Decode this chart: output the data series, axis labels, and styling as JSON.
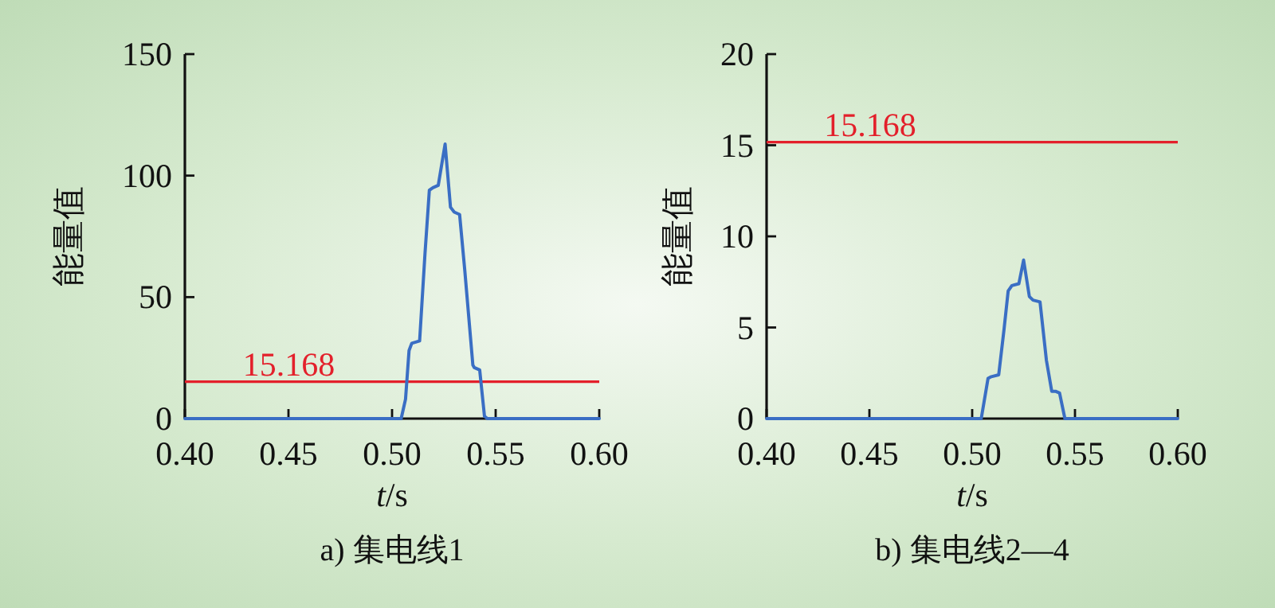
{
  "chart_data": [
    {
      "type": "line",
      "title": "a) 集电线1",
      "xlabel": "*t*/s",
      "ylabel": "能量值",
      "x": [
        0.4,
        0.5044,
        0.5065,
        0.5082,
        0.5095,
        0.5133,
        0.5159,
        0.518,
        0.5197,
        0.5223,
        0.5256,
        0.5282,
        0.53,
        0.5326,
        0.5351,
        0.539,
        0.5397,
        0.5423,
        0.5446,
        0.546,
        0.6
      ],
      "series": [
        {
          "color": "#3a6ec4",
          "values": [
            0,
            0,
            8,
            28,
            31,
            32,
            68,
            94,
            95,
            96,
            113,
            87,
            85,
            84,
            61,
            22,
            21,
            20,
            1,
            0,
            0
          ]
        }
      ],
      "xlim": [
        0.4,
        0.6
      ],
      "ylim": [
        0,
        150
      ],
      "xticks": [
        {
          "value": 0.4,
          "label": "0.40"
        },
        {
          "value": 0.45,
          "label": "0.45"
        },
        {
          "value": 0.5,
          "label": "0.50"
        },
        {
          "value": 0.55,
          "label": "0.55"
        },
        {
          "value": 0.6,
          "label": "0.60"
        }
      ],
      "yticks": [
        0,
        50,
        100,
        150
      ],
      "ref_lines": [
        {
          "axis": "y",
          "value": 15.168,
          "label": "15.168",
          "color": "#e3202b"
        }
      ]
    },
    {
      "type": "line",
      "title": "b) 集电线2—4",
      "xlabel": "*t*/s",
      "ylabel": "能量值",
      "x": [
        0.4,
        0.5044,
        0.5077,
        0.5093,
        0.5129,
        0.5155,
        0.5175,
        0.5193,
        0.5227,
        0.525,
        0.5278,
        0.5296,
        0.533,
        0.5361,
        0.5387,
        0.5405,
        0.5425,
        0.5451,
        0.6
      ],
      "series": [
        {
          "color": "#3a6ec4",
          "values": [
            0,
            0,
            2.2,
            2.3,
            2.4,
            4.9,
            7.0,
            7.3,
            7.4,
            8.7,
            6.7,
            6.5,
            6.4,
            3.2,
            1.5,
            1.5,
            1.4,
            0,
            0
          ]
        }
      ],
      "xlim": [
        0.4,
        0.6
      ],
      "ylim": [
        0,
        20
      ],
      "xticks": [
        {
          "value": 0.4,
          "label": "0.40"
        },
        {
          "value": 0.45,
          "label": "0.45"
        },
        {
          "value": 0.5,
          "label": "0.50"
        },
        {
          "value": 0.55,
          "label": "0.55"
        },
        {
          "value": 0.6,
          "label": "0.60"
        }
      ],
      "yticks": [
        0,
        5,
        10,
        15,
        20
      ],
      "ref_lines": [
        {
          "axis": "y",
          "value": 15.168,
          "label": "15.168",
          "color": "#e3202b"
        }
      ]
    }
  ]
}
